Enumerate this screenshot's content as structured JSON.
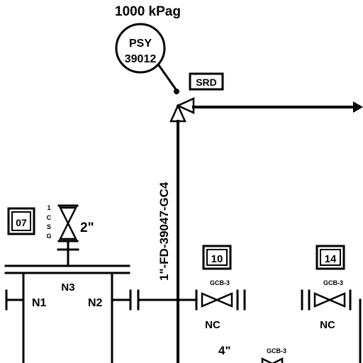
{
  "set_pressure": "1000 kPag",
  "instrument": {
    "tag_top": "PSY",
    "tag_bottom": "39012"
  },
  "srd_box": "SRD",
  "line_number": "1\"-FD-39047-GC4",
  "spec_box": "07",
  "spec_stack": [
    "1",
    "C",
    "S",
    "G"
  ],
  "valve_size_2in": "2\"",
  "vessel": {
    "nozzle_n1": "N1",
    "nozzle_n2": "N2",
    "nozzle_n3": "N3"
  },
  "valves": [
    {
      "tag_box": "10",
      "spec": "GCB-3",
      "status": "NC"
    },
    {
      "tag_box": "14",
      "spec": "GCB-3",
      "status": "NC"
    }
  ],
  "bottom": {
    "size": "4\"",
    "spec": "GCB-3"
  },
  "colors": {
    "line": "#000000",
    "background": "#ffffff"
  }
}
